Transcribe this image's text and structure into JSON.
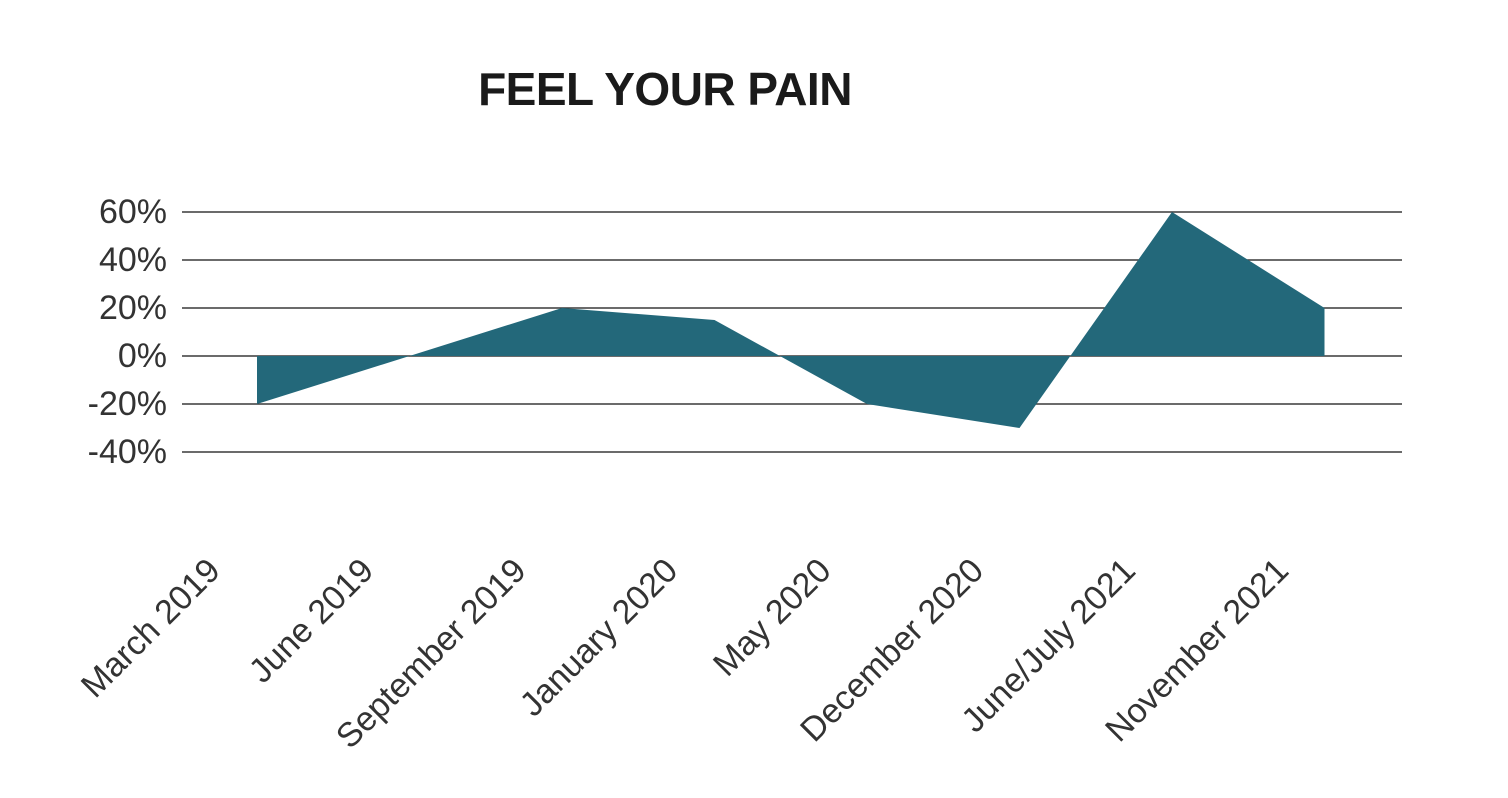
{
  "chart_data": {
    "type": "area",
    "title": "FEEL YOUR PAIN",
    "categories": [
      "March 2019",
      "June 2019",
      "September 2019",
      "January 2020",
      "May 2020",
      "December 2020",
      "June/July 2021",
      "November 2021"
    ],
    "values": [
      -20,
      0,
      20,
      15,
      -20,
      -30,
      60,
      20
    ],
    "unit": "%",
    "xlabel": "",
    "ylabel": "",
    "ylim": [
      -40,
      60
    ],
    "y_tick_values": [
      60,
      40,
      20,
      0,
      -20,
      -40
    ],
    "y_tick_labels": [
      "60%",
      "40%",
      "20%",
      "0%",
      "-20%",
      "-40%"
    ],
    "baseline_value": 0,
    "grid": true,
    "legend": false,
    "x_label_rotation_deg": -45,
    "colors": {
      "area_fill": "#23687a",
      "gridline": "#3a3a3a",
      "tick_text": "#333333",
      "title_text": "#1a1a1a",
      "background": "#ffffff"
    }
  }
}
